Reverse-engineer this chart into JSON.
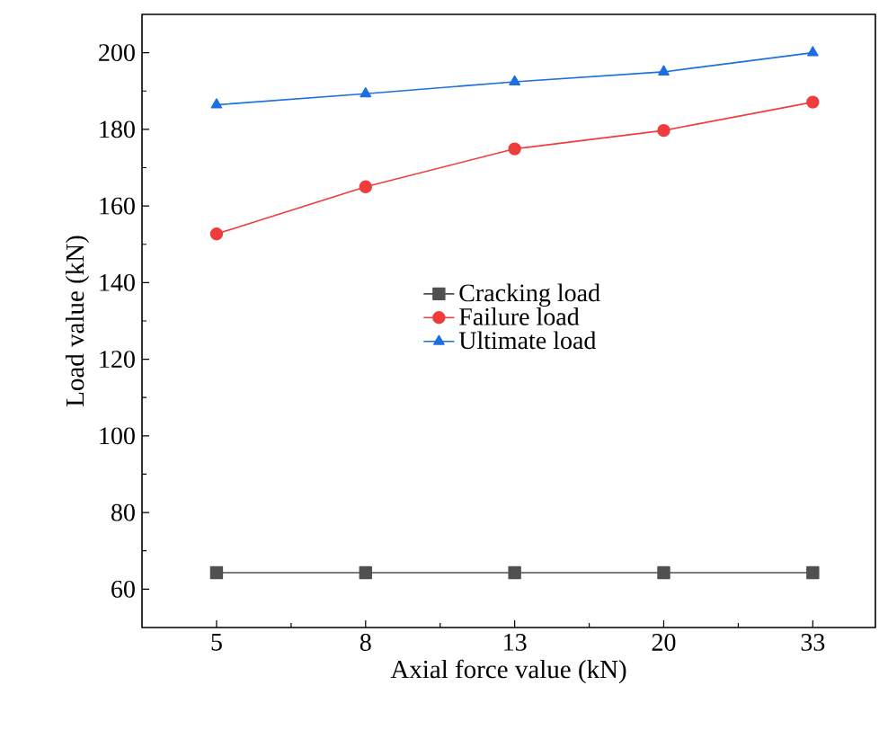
{
  "chart_data": {
    "type": "line",
    "xlabel": "Axial force value (kN)",
    "ylabel": "Load value (kN)",
    "categories": [
      "5",
      "8",
      "13",
      "20",
      "33"
    ],
    "series": [
      {
        "name": "Cracking load",
        "color": "#505050",
        "marker": "square",
        "values": [
          64.3,
          64.3,
          64.3,
          64.3,
          64.3
        ]
      },
      {
        "name": "Failure load",
        "color": "#f03c3c",
        "marker": "circle",
        "values": [
          152.7,
          165.0,
          174.9,
          179.7,
          187.1
        ]
      },
      {
        "name": "Ultimate load",
        "color": "#1c6fe0",
        "marker": "triangle",
        "values": [
          186.4,
          189.3,
          192.4,
          195.0,
          200.0
        ]
      }
    ],
    "ylim": [
      50,
      210
    ],
    "yticks": [
      60,
      80,
      100,
      120,
      140,
      160,
      180,
      200
    ],
    "grid": false,
    "legend": "center"
  }
}
